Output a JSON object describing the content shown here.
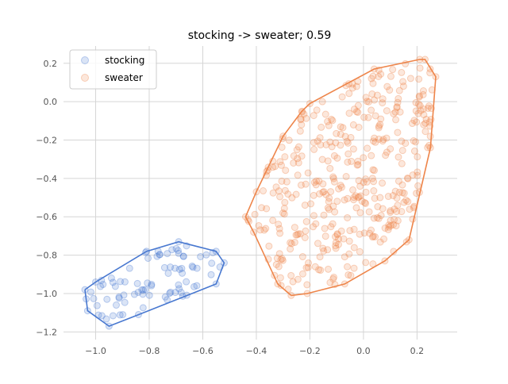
{
  "chart_data": {
    "type": "scatter",
    "title": "stocking -> sweater; 0.59",
    "xlabel": "",
    "ylabel": "",
    "xlim": [
      -1.12,
      0.35
    ],
    "ylim": [
      -1.24,
      0.29
    ],
    "xticks": [
      -1.0,
      -0.8,
      -0.6,
      -0.4,
      -0.2,
      0.0,
      0.2
    ],
    "xtick_labels": [
      "−1.0",
      "−0.8",
      "−0.6",
      "−0.4",
      "−0.2",
      "0.0",
      "0.2"
    ],
    "yticks": [
      -1.2,
      -1.0,
      -0.8,
      -0.6,
      -0.4,
      -0.2,
      0.0,
      0.2
    ],
    "ytick_labels": [
      "−1.2",
      "−1.0",
      "−0.8",
      "−0.6",
      "−0.4",
      "−0.2",
      "0.0",
      "0.2"
    ],
    "grid": true,
    "legend_position": "top-left",
    "series": [
      {
        "name": "stocking",
        "color": "#4878d0",
        "hull": [
          [
            -1.04,
            -0.98
          ],
          [
            -1.03,
            -1.09
          ],
          [
            -0.95,
            -1.17
          ],
          [
            -0.84,
            -1.11
          ],
          [
            -0.55,
            -0.95
          ],
          [
            -0.52,
            -0.84
          ],
          [
            -0.55,
            -0.78
          ],
          [
            -0.69,
            -0.73
          ],
          [
            -0.81,
            -0.78
          ],
          [
            -1.0,
            -0.94
          ]
        ],
        "n": 90
      },
      {
        "name": "sweater",
        "color": "#ee854a",
        "hull": [
          [
            -0.27,
            -1.01
          ],
          [
            -0.32,
            -0.95
          ],
          [
            -0.41,
            -0.68
          ],
          [
            -0.44,
            -0.6
          ],
          [
            -0.4,
            -0.47
          ],
          [
            -0.3,
            -0.18
          ],
          [
            -0.23,
            -0.05
          ],
          [
            -0.2,
            -0.01
          ],
          [
            0.04,
            0.17
          ],
          [
            0.21,
            0.22
          ],
          [
            0.23,
            0.22
          ],
          [
            0.27,
            0.13
          ],
          [
            0.25,
            -0.24
          ],
          [
            0.17,
            -0.72
          ],
          [
            0.08,
            -0.83
          ],
          [
            -0.07,
            -0.95
          ],
          [
            -0.21,
            -1.0
          ]
        ],
        "n": 420
      }
    ]
  }
}
